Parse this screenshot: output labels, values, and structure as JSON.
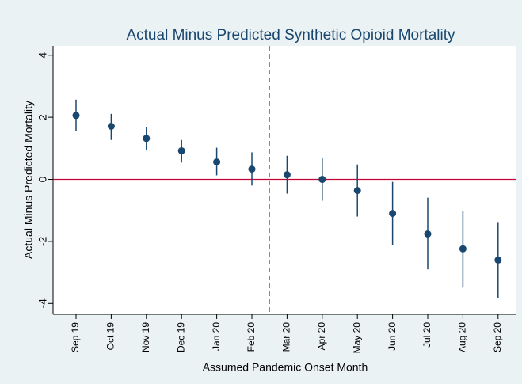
{
  "chart_data": {
    "type": "errorbar",
    "title": "Actual Minus Predicted Synthetic Opioid Mortality",
    "x_label": "Assumed Pandemic Onset Month",
    "y_label": "Actual Minus Predicted Mortality",
    "categories": [
      "Sep 19",
      "Oct 19",
      "Nov 19",
      "Dec 19",
      "Jan 20",
      "Feb 20",
      "Mar 20",
      "Apr 20",
      "May 20",
      "Jun 20",
      "Jul 20",
      "Aug 20",
      "Sep 20"
    ],
    "series": [
      {
        "color": "#1a476f",
        "values": [
          2.06,
          1.71,
          1.32,
          0.92,
          0.56,
          0.33,
          0.15,
          0.0,
          -0.36,
          -1.1,
          -1.76,
          -2.24,
          -2.6
        ],
        "upper": [
          2.57,
          2.11,
          1.68,
          1.27,
          1.02,
          0.87,
          0.76,
          0.69,
          0.48,
          -0.08,
          -0.59,
          -1.02,
          -1.4
        ],
        "lower": [
          1.55,
          1.27,
          0.94,
          0.54,
          0.13,
          -0.2,
          -0.46,
          -0.69,
          -1.2,
          -2.11,
          -2.9,
          -3.49,
          -3.82
        ]
      }
    ],
    "ylim": [
      -4.35,
      4.3
    ],
    "yticks": [
      -4,
      -2,
      0,
      2,
      4
    ],
    "yline": {
      "value": 0,
      "color": "#c10534"
    },
    "xline": {
      "value": 5.5,
      "color": "#e8383d"
    }
  }
}
